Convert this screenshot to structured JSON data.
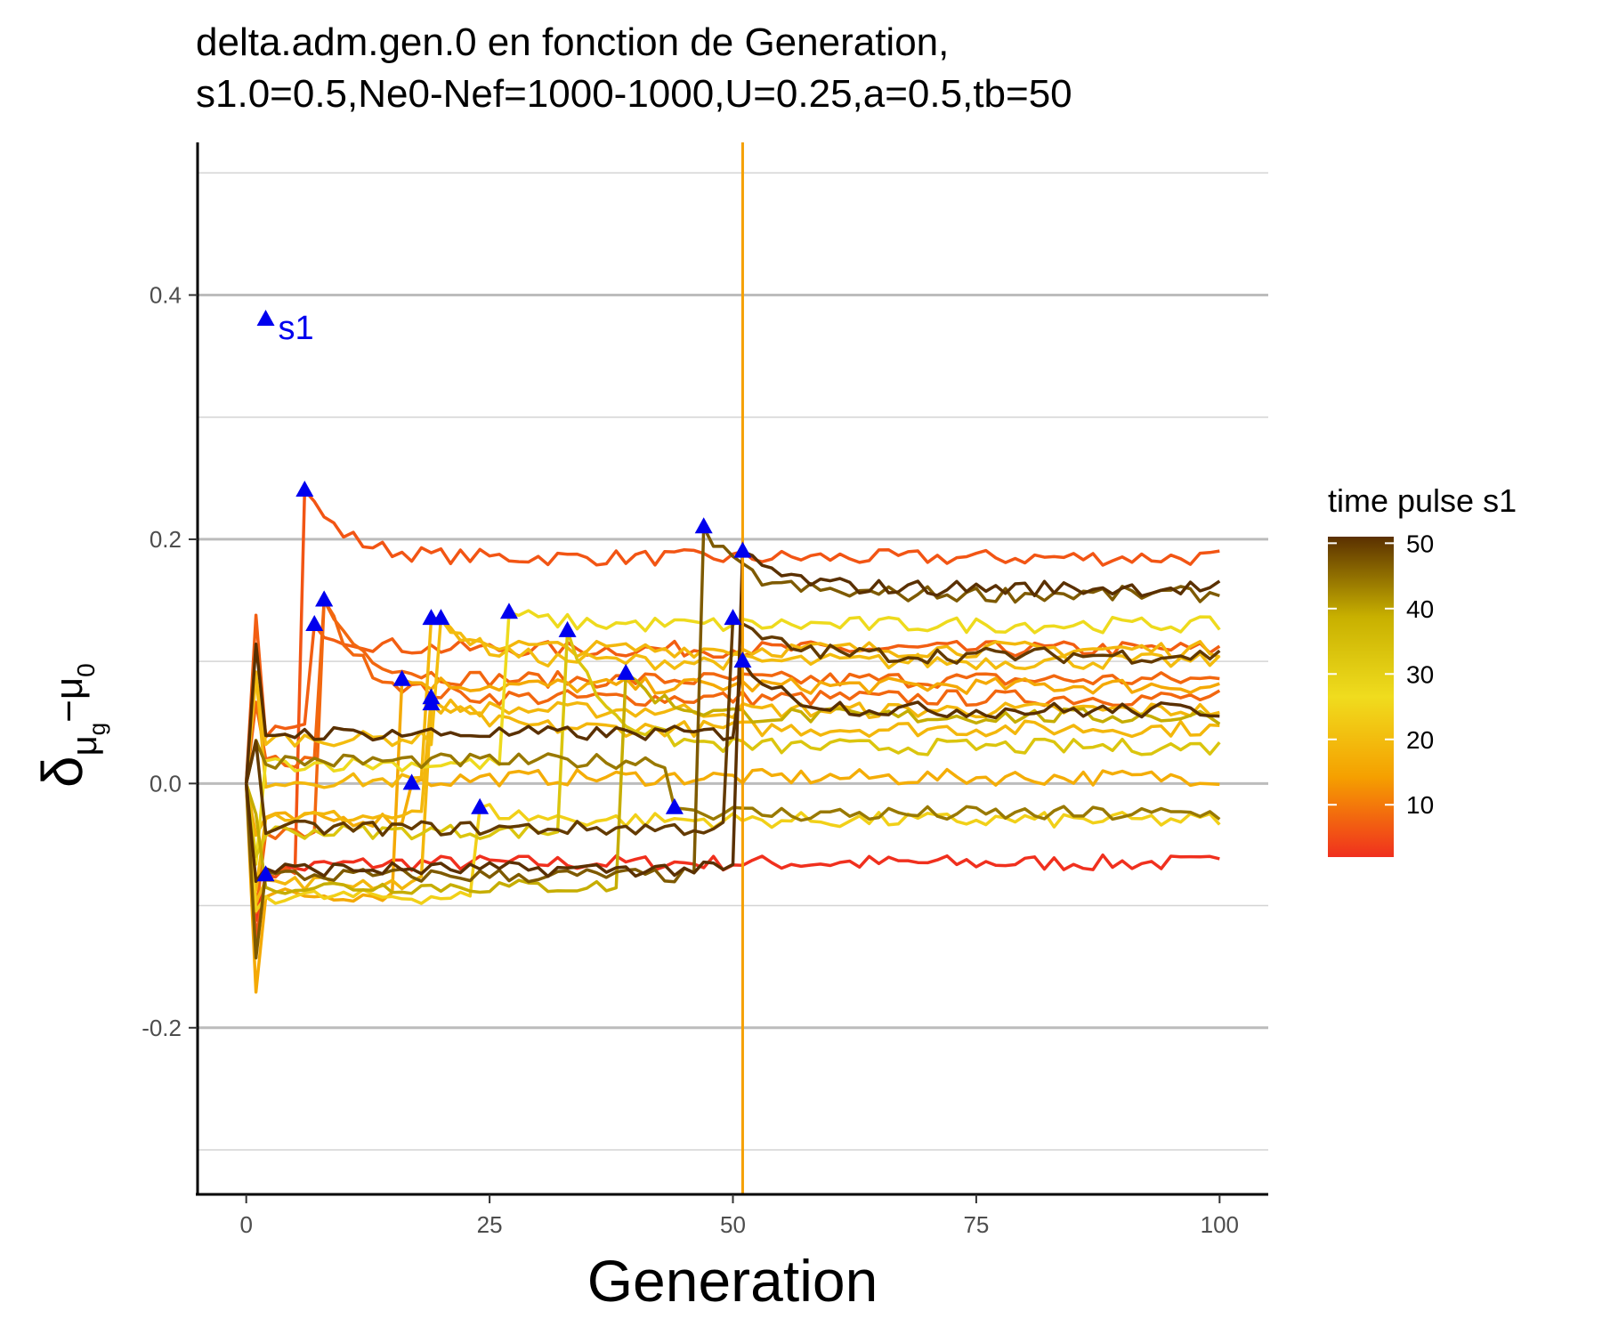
{
  "chart_data": {
    "type": "line",
    "title": "delta.adm.gen.0 en fonction de Generation,",
    "subtitle": "s1.0=0.5,Ne0-Nef=1000-1000,U=0.25,a=0.5,tb=50",
    "xlabel": "Generation",
    "ylabel": {
      "base": "δ",
      "sub1": "μ",
      "sub2": "g",
      "minus": "−μ",
      "sub3": "0"
    },
    "xlim": [
      -5,
      105
    ],
    "ylim": [
      -0.335,
      0.525
    ],
    "x_ticks": [
      0,
      25,
      50,
      75,
      100
    ],
    "x_tick_labels": [
      "0",
      "25",
      "50",
      "75",
      "100"
    ],
    "y_ticks": [
      -0.2,
      0.0,
      0.2,
      0.4
    ],
    "y_tick_labels": [
      "-0.2",
      "0.0",
      "0.2",
      "0.4"
    ],
    "y_minor_ticks": [
      -0.3,
      -0.1,
      0.1,
      0.3,
      0.5
    ],
    "vline_x": 51,
    "vline_color": "#f5a000",
    "grid": true,
    "legend": {
      "title": "time pulse s1",
      "position": "right",
      "range": [
        2,
        51
      ],
      "ticks": [
        10,
        20,
        30,
        40,
        50
      ],
      "tick_labels": [
        "10",
        "20",
        "30",
        "40",
        "50"
      ],
      "colors": [
        "#f0301e",
        "#f5a000",
        "#f0dc1e",
        "#c8b000",
        "#5a3000"
      ]
    },
    "annotation": {
      "text": "s1",
      "x": 2,
      "y": 0.38,
      "color": "#0000ee"
    },
    "marker_color": "#0000ee",
    "series": [
      {
        "pulse": 2,
        "pre": -0.075,
        "post": -0.065
      },
      {
        "pulse": 6,
        "pre": 0.24,
        "post": 0.185
      },
      {
        "pulse": 7,
        "pre": 0.13,
        "post": 0.11
      },
      {
        "pulse": 8,
        "pre": 0.15,
        "post": 0.07
      },
      {
        "pulse": 8,
        "pre": 0.15,
        "post": 0.085
      },
      {
        "pulse": 16,
        "pre": 0.085,
        "post": 0.08
      },
      {
        "pulse": 17,
        "pre": 0.0,
        "post": 0.005
      },
      {
        "pulse": 19,
        "pre": 0.07,
        "post": 0.045
      },
      {
        "pulse": 19,
        "pre": 0.135,
        "post": 0.11
      },
      {
        "pulse": 19,
        "pre": 0.065,
        "post": 0.06
      },
      {
        "pulse": 20,
        "pre": 0.135,
        "post": 0.1
      },
      {
        "pulse": 24,
        "pre": -0.02,
        "post": -0.03
      },
      {
        "pulse": 27,
        "pre": 0.14,
        "post": 0.13
      },
      {
        "pulse": 33,
        "pre": 0.125,
        "post": 0.03
      },
      {
        "pulse": 39,
        "pre": 0.09,
        "post": 0.055
      },
      {
        "pulse": 44,
        "pre": -0.02,
        "post": -0.025
      },
      {
        "pulse": 47,
        "pre": 0.21,
        "post": 0.155
      },
      {
        "pulse": 50,
        "pre": 0.135,
        "post": 0.105
      },
      {
        "pulse": 51,
        "pre": 0.19,
        "post": 0.16
      },
      {
        "pulse": 51,
        "pre": 0.1,
        "post": 0.06
      }
    ]
  }
}
